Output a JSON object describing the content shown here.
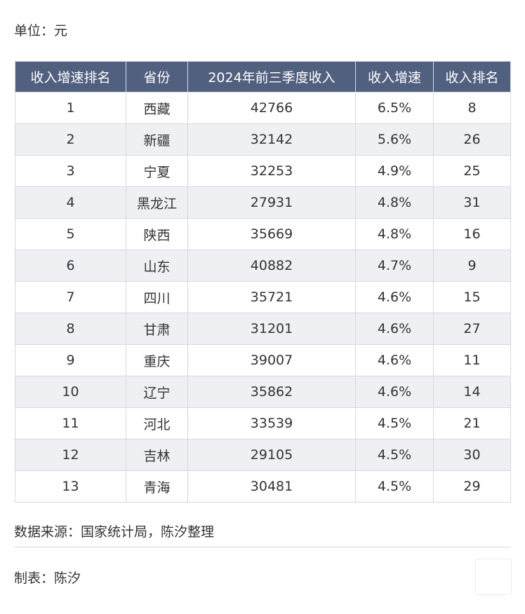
{
  "unit_label": "单位：元",
  "table": {
    "headers": [
      "收入增速排名",
      "省份",
      "2024年前三季度收入",
      "收入增速",
      "收入排名"
    ],
    "rows": [
      [
        "1",
        "西藏",
        "42766",
        "6.5%",
        "8"
      ],
      [
        "2",
        "新疆",
        "32142",
        "5.6%",
        "26"
      ],
      [
        "3",
        "宁夏",
        "32253",
        "4.9%",
        "25"
      ],
      [
        "4",
        "黑龙江",
        "27931",
        "4.8%",
        "31"
      ],
      [
        "5",
        "陕西",
        "35669",
        "4.8%",
        "16"
      ],
      [
        "6",
        "山东",
        "40882",
        "4.7%",
        "9"
      ],
      [
        "7",
        "四川",
        "35721",
        "4.6%",
        "15"
      ],
      [
        "8",
        "甘肃",
        "31201",
        "4.6%",
        "27"
      ],
      [
        "9",
        "重庆",
        "39007",
        "4.6%",
        "11"
      ],
      [
        "10",
        "辽宁",
        "35862",
        "4.6%",
        "14"
      ],
      [
        "11",
        "河北",
        "33539",
        "4.5%",
        "21"
      ],
      [
        "12",
        "吉林",
        "29105",
        "4.5%",
        "30"
      ],
      [
        "13",
        "青海",
        "30481",
        "4.5%",
        "29"
      ]
    ]
  },
  "source_text": "数据来源：国家统计局，陈汐整理",
  "maker_text": "制表：陈汐",
  "colors": {
    "header_bg": "#52607f",
    "header_text": "#ffffff",
    "stripe_bg": "#eef0f4",
    "border": "#d8d8d8",
    "text": "#333333"
  }
}
